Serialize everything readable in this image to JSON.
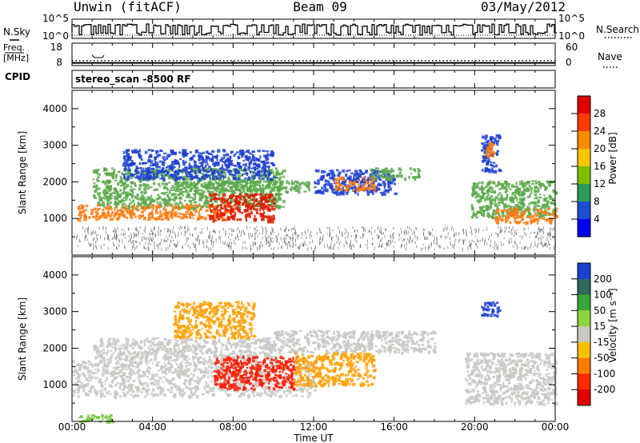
{
  "header": {
    "station": "Unwin (fitACF)",
    "beam": "Beam 09",
    "date": "03/May/2012"
  },
  "side_labels": {
    "nsky": "N.Sky",
    "nsearch": "N.Search",
    "freq_line1": "Freq.",
    "freq_line2": "[MHz]",
    "nave": "Nave",
    "cpid": "CPID"
  },
  "cpid_text": "stereo_scan -8500 RF",
  "chart_data": [
    {
      "type": "line",
      "name": "noise",
      "y_left_ticks": [
        "10^5",
        "10^0"
      ],
      "y_right_ticks": [
        "10^5",
        "10^0"
      ],
      "series": [
        {
          "name": "N.Sky"
        },
        {
          "name": "N.Search"
        }
      ]
    },
    {
      "type": "scatter",
      "name": "freq-nave",
      "y_left_ticks": [
        "18",
        "8"
      ],
      "y_right_ticks": [
        "60",
        "0"
      ],
      "series": [
        {
          "name": "Freq.",
          "x": [
            0,
            24
          ],
          "values": [
            8.9,
            8.9
          ]
        },
        {
          "name": "Nave",
          "x": [
            0,
            24
          ],
          "values": [
            12,
            12
          ]
        }
      ]
    },
    {
      "type": "heatmap",
      "name": "power",
      "xlabel": "",
      "ylabel": "Slant Range [km]",
      "xlim": [
        0,
        24
      ],
      "ylim": [
        0,
        4500
      ],
      "y_ticks": [
        "1000",
        "2000",
        "3000",
        "4000"
      ],
      "colorbar_label": "Power [dB]",
      "colorbar_ticks": [
        "28",
        "24",
        "20",
        "16",
        "12",
        "8",
        "4"
      ],
      "colorbar_colors": [
        "#e00000",
        "#ff3a00",
        "#ff8c00",
        "#ffc400",
        "#7cc000",
        "#2e9a55",
        "#1b4fcf",
        "#0000f0"
      ],
      "regions": [
        {
          "t0": 1.0,
          "t1": 10.5,
          "r0": 1300,
          "r1": 2400,
          "level": "green"
        },
        {
          "t0": 2.5,
          "t1": 10.0,
          "r0": 2100,
          "r1": 2900,
          "level": "blue"
        },
        {
          "t0": 5.0,
          "t1": 11.8,
          "r0": 1750,
          "r1": 2050,
          "level": "green"
        },
        {
          "t0": 12.0,
          "t1": 16.0,
          "r0": 1700,
          "r1": 2350,
          "level": "blue"
        },
        {
          "t0": 13.0,
          "t1": 15.0,
          "r0": 1800,
          "r1": 2150,
          "level": "orange"
        },
        {
          "t0": 14.8,
          "t1": 17.2,
          "r0": 2100,
          "r1": 2400,
          "level": "green"
        },
        {
          "t0": 19.8,
          "t1": 24.0,
          "r0": 1050,
          "r1": 2050,
          "level": "green"
        },
        {
          "t0": 21.0,
          "t1": 24.0,
          "r0": 900,
          "r1": 1300,
          "level": "orange"
        },
        {
          "t0": 20.3,
          "t1": 21.2,
          "r0": 2300,
          "r1": 3300,
          "level": "blue"
        },
        {
          "t0": 20.5,
          "t1": 20.9,
          "r0": 2700,
          "r1": 3100,
          "level": "orange"
        },
        {
          "t0": 0.2,
          "t1": 8.0,
          "r0": 1000,
          "r1": 1400,
          "level": "orange"
        },
        {
          "t0": 6.8,
          "t1": 10.0,
          "r0": 950,
          "r1": 1700,
          "level": "red"
        },
        {
          "t0": 0.2,
          "t1": 24.0,
          "r0": 200,
          "r1": 800,
          "level": "scatter"
        }
      ]
    },
    {
      "type": "heatmap",
      "name": "velocity",
      "xlabel": "Time UT",
      "ylabel": "Slant Range [km]",
      "xlim": [
        0,
        24
      ],
      "ylim": [
        0,
        4500
      ],
      "x_ticks": [
        "00:00",
        "04:00",
        "08:00",
        "12:00",
        "16:00",
        "20:00",
        "00:00"
      ],
      "y_ticks": [
        "1000",
        "2000",
        "3000",
        "4000"
      ],
      "colorbar_label": "Velocity [m s⁻¹]",
      "colorbar_ticks": [
        "200",
        "100",
        "50",
        "15",
        "-15",
        "-50",
        "-100",
        "-200"
      ],
      "colorbar_colors": [
        "#1c3fd0",
        "#2f6a5a",
        "#3aa63a",
        "#8cd440",
        "#c8c8c4",
        "#ffc000",
        "#ff7a00",
        "#ff2a00",
        "#e00000"
      ],
      "regions": [
        {
          "t0": 0.0,
          "t1": 12.0,
          "r0": 700,
          "r1": 1700,
          "level": "grey"
        },
        {
          "t0": 1.0,
          "t1": 10.0,
          "r0": 1700,
          "r1": 2300,
          "level": "grey"
        },
        {
          "t0": 10.0,
          "t1": 18.0,
          "r0": 1900,
          "r1": 2500,
          "level": "grey"
        },
        {
          "t0": 5.0,
          "t1": 9.0,
          "r0": 2300,
          "r1": 3300,
          "level": "orange"
        },
        {
          "t0": 7.0,
          "t1": 11.0,
          "r0": 900,
          "r1": 1800,
          "level": "red"
        },
        {
          "t0": 11.0,
          "t1": 15.0,
          "r0": 1000,
          "r1": 1900,
          "level": "orange"
        },
        {
          "t0": 19.5,
          "t1": 24.0,
          "r0": 500,
          "r1": 1900,
          "level": "grey"
        },
        {
          "t0": 20.3,
          "t1": 21.2,
          "r0": 2900,
          "r1": 3300,
          "level": "blue"
        },
        {
          "t0": 0.3,
          "t1": 2.0,
          "r0": 0,
          "r1": 200,
          "level": "green"
        }
      ]
    }
  ],
  "colors": {
    "axis": "#000000",
    "background": "#ffffff"
  }
}
